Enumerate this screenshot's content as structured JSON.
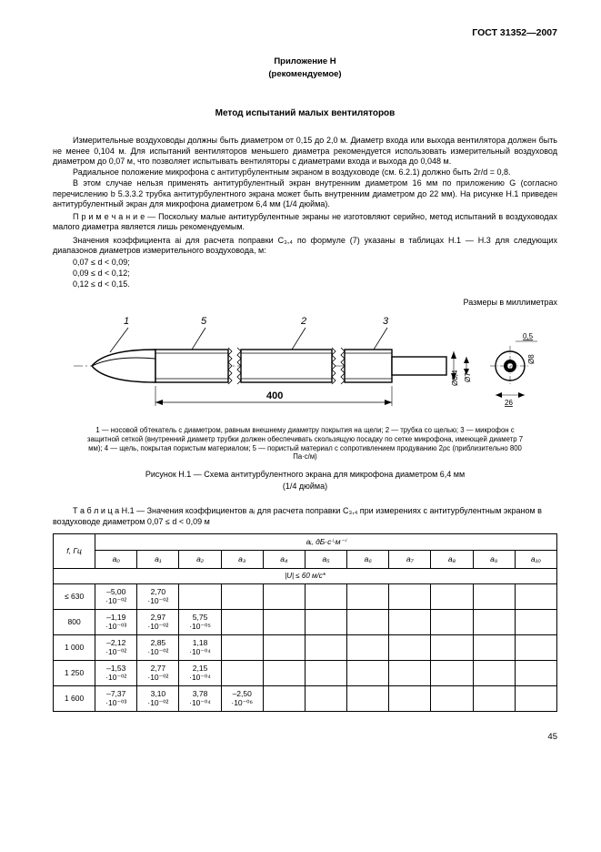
{
  "doc_id": "ГОСТ 31352—2007",
  "appendix_title": "Приложение Н",
  "appendix_sub": "(рекомендуемое)",
  "main_title": "Метод испытаний малых вентиляторов",
  "p1": "Измерительные воздуховоды должны быть диаметром от 0,15 до 2,0 м. Диаметр входа или выхода вентилятора должен быть не менее 0,104 м. Для испытаний вентиляторов меньшего диаметра рекомендуется использовать измерительный воздуховод диаметром до 0,07 м, что позволяет испытывать вентиляторы с диаметрами входа и выхода до 0,048 м.",
  "p2": "Радиальное положение микрофона с антитурбулентным экраном в воздуховоде (см. 6.2.1) должно быть 2r/d = 0,8.",
  "p3": "В этом случае нельзя применять антитурбулентный экран внутренним диаметром 16 мм по приложению G (согласно перечислению b 5.3.3.2 трубка антитурбулентного экрана может быть внутренним диаметром до 22 мм). На рисунке Н.1 приведен антитурбулентный экран для микрофона диаметром 6,4 мм (1/4 дюйма).",
  "note": "П р и м е ч а н и е — Поскольку малые антитурбулентные экраны не изготовляют серийно, метод испытаний в воздуховодах малого диаметра является лишь рекомендуемым.",
  "p4": "Значения коэффициента ai для расчета поправки С₃,₄ по формуле (7) указаны в таблицах Н.1 — Н.3 для следующих диапазонов диаметров измерительного воздуховода, м:",
  "r1": "0,07 ≤ d < 0,09;",
  "r2": "0,09 ≤ d < 0,12;",
  "r3": "0,12 ≤ d < 0,15.",
  "dim_label": "Размеры в миллиметрах",
  "figure": {
    "labels": [
      "1",
      "5",
      "2",
      "3"
    ],
    "dim_400": "400",
    "dim_84": "Ø8,4",
    "dim_7": "Ø7",
    "dim_8": "Ø8",
    "dim_05": "0,5",
    "dim_26": "26",
    "line_color": "#000000",
    "bg": "#ffffff"
  },
  "legend_1": "1 — носовой обтекатель с диаметром, равным внешнему диаметру покрытия на щели; 2 — трубка со щелью; 3 — микрофон с защитной сеткой (внутренний диаметр трубки должен обеспечивать скользящую посадку по сетке микрофона, имеющей диаметр 7 мм); 4 — щель, покрытая пористым материалом; 5 — пористый материал с сопротивлением продуванию 2ρс (приблизительно 800 Па·с/м)",
  "fig_caption_1": "Рисунок Н.1 — Схема антитурбулентного экрана для микрофона диаметром 6,4 мм",
  "fig_caption_2": "(1/4 дюйма)",
  "table_caption": "Т а б л и ц а  Н.1 — Значения коэффициентов aᵢ для расчета поправки С₃,₄ при измерениях с антитурбулентным экраном в воздуховоде диаметром 0,07 ≤ d < 0,09 м",
  "table": {
    "top_hdr": "aᵢ, дБ·cⁱ·м⁻ⁱ",
    "freq_hdr": "f, Гц",
    "col_hdrs": [
      "a₀",
      "a₁",
      "a₂",
      "a₃",
      "a₄",
      "a₅",
      "a₆",
      "a₇",
      "a₈",
      "a₉",
      "a₁₀"
    ],
    "cond_hdr": "|U| ≤ 60 м/с*",
    "rows": [
      {
        "f": "≤ 630",
        "v": [
          "–5,00\n·10⁻⁰²",
          "2,70\n·10⁻⁰²",
          "",
          "",
          "",
          "",
          "",
          "",
          "",
          "",
          ""
        ]
      },
      {
        "f": "800",
        "v": [
          "–1,19\n·10⁻⁰³",
          "2,97\n·10⁻⁰²",
          "5,75\n·10⁻⁰⁵",
          "",
          "",
          "",
          "",
          "",
          "",
          "",
          ""
        ]
      },
      {
        "f": "1 000",
        "v": [
          "–2,12\n·10⁻⁰²",
          "2,85\n·10⁻⁰²",
          "1,18\n·10⁻⁰⁴",
          "",
          "",
          "",
          "",
          "",
          "",
          "",
          ""
        ]
      },
      {
        "f": "1 250",
        "v": [
          "–1,53\n·10⁻⁰²",
          "2,77\n·10⁻⁰²",
          "2,15\n·10⁻⁰⁴",
          "",
          "",
          "",
          "",
          "",
          "",
          "",
          ""
        ]
      },
      {
        "f": "1 600",
        "v": [
          "–7,37\n·10⁻⁰³",
          "3,10\n·10⁻⁰²",
          "3,78\n·10⁻⁰⁴",
          "–2,50\n·10⁻⁰⁶",
          "",
          "",
          "",
          "",
          "",
          "",
          ""
        ]
      }
    ]
  },
  "page_num": "45"
}
